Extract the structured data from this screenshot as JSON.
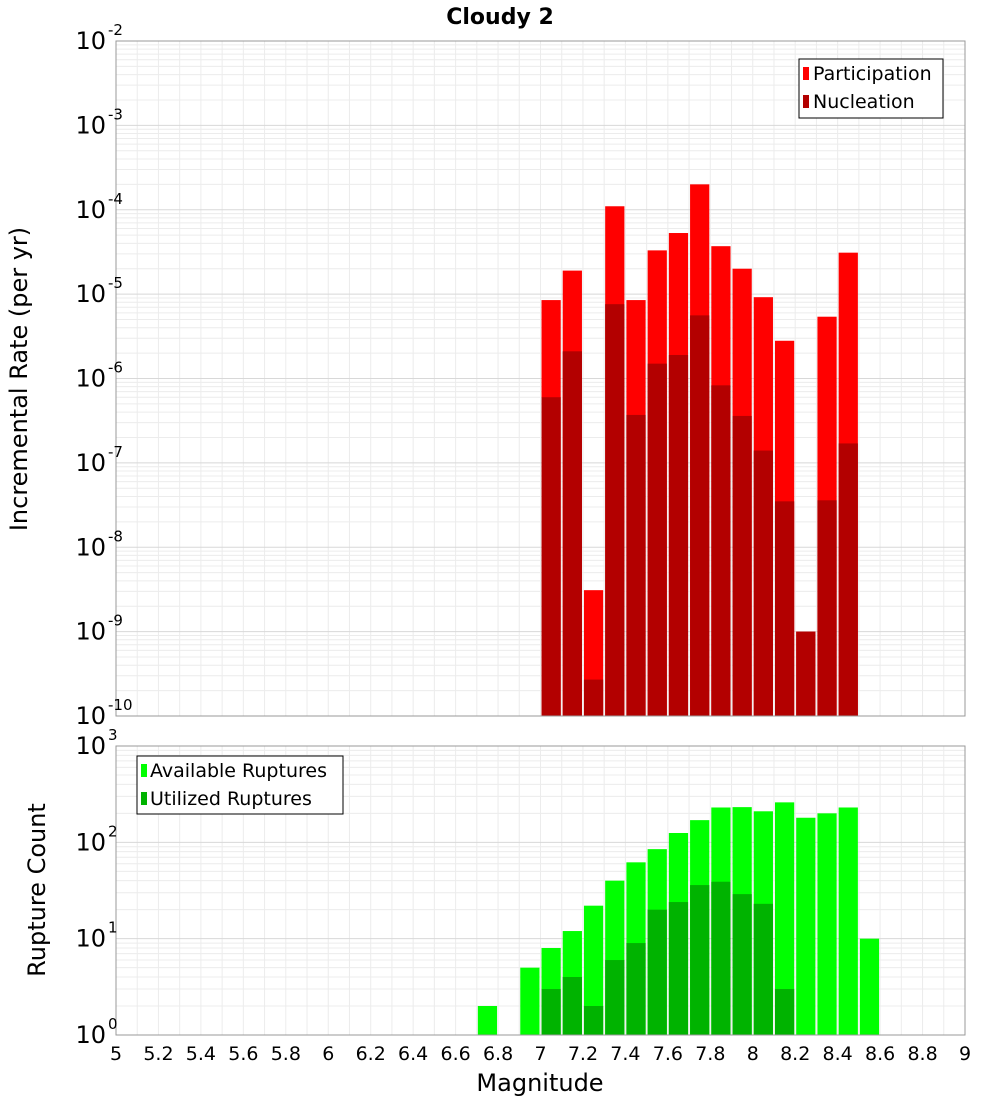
{
  "chart_data": [
    {
      "type": "bar",
      "title": "Cloudy 2",
      "xlabel": "",
      "ylabel": "Incremental Rate (per yr)",
      "yscale": "log",
      "ylim_exp": [
        -10,
        -2
      ],
      "xlim": [
        5,
        9
      ],
      "bin_width": 0.1,
      "legend_position": "top-right",
      "series": [
        {
          "name": "Participation",
          "color": "#ff0000",
          "x": [
            7.05,
            7.15,
            7.25,
            7.35,
            7.45,
            7.55,
            7.65,
            7.75,
            7.85,
            7.95,
            8.05,
            8.15,
            8.25,
            8.35,
            8.45
          ],
          "values": [
            8.5e-06,
            1.9e-05,
            3.1e-09,
            0.00011,
            8.5e-06,
            3.3e-05,
            5.3e-05,
            0.0002,
            3.7e-05,
            2e-05,
            9.2e-06,
            2.8e-06,
            1e-09,
            5.4e-06,
            3.1e-05
          ]
        },
        {
          "name": "Nucleation",
          "color": "#b30000",
          "x": [
            7.05,
            7.15,
            7.25,
            7.35,
            7.45,
            7.55,
            7.65,
            7.75,
            7.85,
            7.95,
            8.05,
            8.15,
            8.25,
            8.35,
            8.45
          ],
          "values": [
            6e-07,
            2.1e-06,
            2.7e-10,
            7.6e-06,
            3.7e-07,
            1.5e-06,
            1.9e-06,
            5.6e-06,
            8.3e-07,
            3.6e-07,
            1.4e-07,
            3.5e-08,
            1e-09,
            3.6e-08,
            1.7e-07
          ]
        }
      ]
    },
    {
      "type": "bar",
      "title": "",
      "xlabel": "Magnitude",
      "ylabel": "Rupture Count",
      "yscale": "log",
      "ylim_exp": [
        0,
        3
      ],
      "xlim": [
        5,
        9
      ],
      "bin_width": 0.1,
      "legend_position": "top-left",
      "xticks": [
        "5",
        "5.2",
        "5.4",
        "5.6",
        "5.8",
        "6",
        "6.2",
        "6.4",
        "6.6",
        "6.8",
        "7",
        "7.2",
        "7.4",
        "7.6",
        "7.8",
        "8",
        "8.2",
        "8.4",
        "8.6",
        "8.8",
        "9"
      ],
      "series": [
        {
          "name": "Available Ruptures",
          "color": "#00ff00",
          "x": [
            6.25,
            6.75,
            6.85,
            6.95,
            7.05,
            7.15,
            7.25,
            7.35,
            7.45,
            7.55,
            7.65,
            7.75,
            7.85,
            7.95,
            8.05,
            8.15,
            8.25,
            8.35,
            8.45,
            8.55
          ],
          "values": [
            1,
            2,
            1,
            5,
            8,
            12,
            22,
            40,
            62,
            85,
            125,
            170,
            230,
            232,
            210,
            260,
            180,
            200,
            230,
            10
          ]
        },
        {
          "name": "Utilized Ruptures",
          "color": "#00b300",
          "x": [
            7.05,
            7.15,
            7.25,
            7.35,
            7.45,
            7.55,
            7.65,
            7.75,
            7.85,
            7.95,
            8.05,
            8.15,
            8.25,
            8.35,
            8.45
          ],
          "values": [
            3,
            4,
            2,
            6,
            9,
            20,
            24,
            36,
            39,
            29,
            23,
            3,
            1,
            1,
            1
          ]
        }
      ]
    }
  ]
}
